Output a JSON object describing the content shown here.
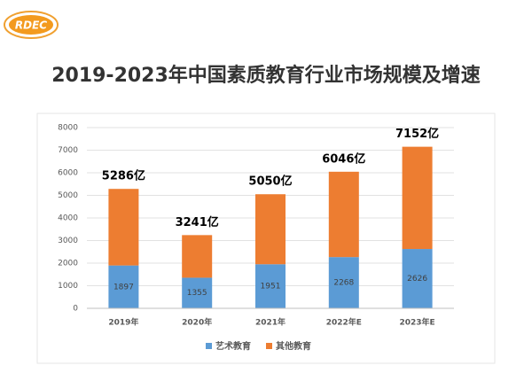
{
  "logo": "RDEC",
  "chart_data": {
    "type": "stacked-bar",
    "title": "2019-2023年中国素质教育行业市场规模及增速",
    "categories": [
      "2019年",
      "2020年",
      "2021年",
      "2022年E",
      "2023年E"
    ],
    "series": [
      {
        "name": "艺术教育",
        "color": "#5b9bd5",
        "values": [
          1897,
          1355,
          1951,
          2268,
          2626
        ]
      },
      {
        "name": "其他教育",
        "color": "#ed7d31",
        "values": [
          3389,
          1886,
          3099,
          3778,
          4526
        ]
      }
    ],
    "annotations": [
      "5286亿",
      "3241亿",
      "5050亿",
      "6046亿",
      "7152亿"
    ],
    "ylim": [
      0,
      8000
    ],
    "yticks": [
      0,
      1000,
      2000,
      3000,
      4000,
      5000,
      6000,
      7000,
      8000
    ],
    "grid": true,
    "legend": "bottom"
  }
}
